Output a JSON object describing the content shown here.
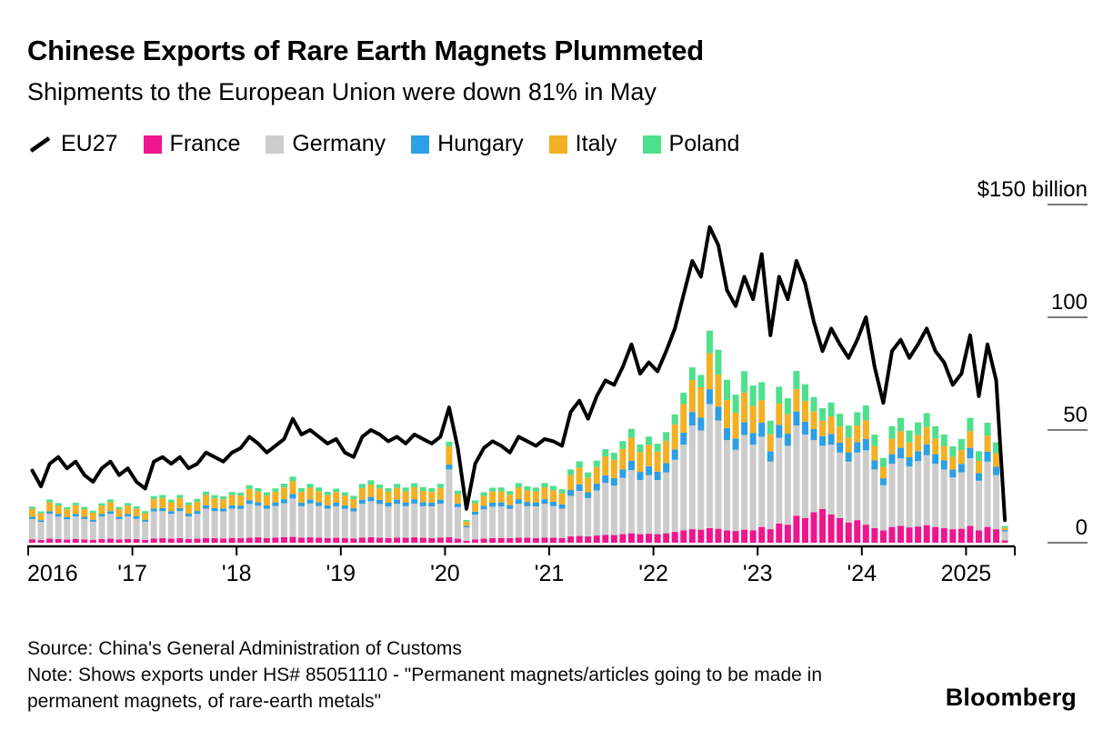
{
  "header": {
    "title": "Chinese Exports of Rare Earth Magnets Plummeted",
    "subtitle": "Shipments to the European Union were down 81% in May"
  },
  "legend": {
    "items": [
      {
        "label": "EU27",
        "type": "line",
        "color": "#000000"
      },
      {
        "label": "France",
        "type": "square",
        "color": "#ED168F"
      },
      {
        "label": "Germany",
        "type": "square",
        "color": "#CCCCCC"
      },
      {
        "label": "Hungary",
        "type": "square",
        "color": "#2D9FE4"
      },
      {
        "label": "Italy",
        "type": "square",
        "color": "#F2B024"
      },
      {
        "label": "Poland",
        "type": "square",
        "color": "#4EE08D"
      }
    ]
  },
  "chart_data": {
    "type": "bar",
    "stacked": true,
    "x_start": "2016-01",
    "x_end": "2025-05",
    "months": 113,
    "x_year_labels": [
      "2016",
      "'17",
      "'18",
      "'19",
      "'20",
      "'21",
      "'22",
      "'23",
      "'24",
      "2025"
    ],
    "x_year_start_indices": [
      0,
      12,
      24,
      36,
      48,
      60,
      72,
      84,
      96,
      108
    ],
    "ylim": [
      0,
      150
    ],
    "y_ticks": [
      {
        "value": 150,
        "label": "$150 billion"
      },
      {
        "value": 100,
        "label": "100"
      },
      {
        "value": 50,
        "label": "50"
      },
      {
        "value": 0,
        "label": "0"
      }
    ],
    "legend_position": "top",
    "grid": "right-ticks-only",
    "series": [
      {
        "name": "France",
        "color": "#ED168F",
        "values": [
          1.5,
          1.2,
          1.8,
          1.6,
          1.4,
          1.7,
          1.5,
          1.3,
          1.6,
          1.8,
          1.5,
          1.7,
          1.6,
          1.3,
          1.9,
          2.0,
          1.8,
          2.0,
          1.7,
          1.8,
          2.1,
          2.0,
          1.9,
          2.1,
          2.0,
          2.2,
          2.4,
          2.1,
          2.3,
          2.5,
          2.6,
          2.2,
          2.4,
          2.3,
          2.1,
          2.2,
          2.0,
          1.9,
          2.3,
          2.4,
          2.2,
          2.1,
          2.3,
          2.2,
          2.4,
          2.2,
          2.1,
          2.3,
          2.5,
          1.8,
          0.8,
          1.5,
          1.8,
          2.0,
          2.1,
          2.0,
          2.3,
          2.2,
          2.1,
          2.3,
          2.2,
          2.1,
          2.8,
          3.0,
          2.8,
          3.2,
          3.5,
          3.4,
          3.8,
          4.2,
          3.8,
          4.0,
          3.8,
          4.2,
          4.8,
          5.5,
          6.0,
          5.8,
          6.5,
          6.2,
          5.5,
          5.2,
          5.8,
          5.5,
          7.0,
          6.0,
          8.5,
          8.0,
          12.0,
          11.0,
          13.5,
          15.0,
          12.5,
          11.0,
          9.0,
          10.0,
          8.0,
          6.5,
          5.5,
          7.0,
          7.5,
          6.8,
          7.2,
          7.8,
          7.0,
          6.5,
          6.0,
          6.2,
          7.5,
          5.5,
          7.0,
          6.0,
          1.0
        ]
      },
      {
        "name": "Germany",
        "color": "#CCCCCC",
        "values": [
          9,
          8,
          11,
          10,
          9,
          10,
          9,
          8,
          10,
          11,
          9,
          10,
          9,
          8,
          12,
          12,
          11,
          12,
          10,
          11,
          13,
          12,
          12,
          13,
          13,
          15,
          14,
          13,
          14,
          15,
          17,
          14,
          15,
          14,
          13,
          14,
          13,
          12,
          15,
          16,
          15,
          14,
          15,
          14,
          15,
          14,
          14,
          15,
          30,
          14,
          6,
          11,
          13,
          14,
          14,
          13,
          15,
          14,
          14,
          15,
          14,
          13,
          18,
          20,
          17,
          20,
          23,
          22,
          25,
          28,
          24,
          26,
          24,
          27,
          32,
          38,
          46,
          44,
          55,
          48,
          40,
          36,
          42,
          38,
          40,
          30,
          38,
          35,
          40,
          37,
          32,
          28,
          31,
          29,
          27,
          30,
          33,
          26,
          20,
          28,
          30,
          27,
          29,
          31,
          28,
          26,
          23,
          25,
          30,
          22,
          29,
          24,
          4
        ]
      },
      {
        "name": "Hungary",
        "color": "#2D9FE4",
        "values": [
          1.0,
          0.8,
          1.2,
          1.1,
          1.0,
          1.1,
          1.0,
          0.9,
          1.1,
          1.2,
          1.0,
          1.1,
          1.1,
          0.9,
          1.3,
          1.4,
          1.2,
          1.4,
          1.2,
          1.3,
          1.5,
          1.4,
          1.3,
          1.5,
          1.5,
          1.7,
          1.6,
          1.5,
          1.6,
          1.8,
          2.0,
          1.6,
          1.8,
          1.7,
          1.5,
          1.6,
          1.5,
          1.4,
          1.8,
          1.9,
          1.8,
          1.7,
          1.8,
          1.7,
          1.9,
          1.8,
          1.7,
          1.8,
          2.2,
          1.5,
          0.7,
          1.3,
          1.6,
          1.8,
          1.8,
          1.7,
          2.0,
          1.9,
          1.8,
          2.0,
          2.0,
          1.9,
          2.6,
          2.9,
          2.6,
          3.0,
          3.4,
          3.3,
          3.7,
          4.2,
          3.6,
          3.9,
          3.7,
          4.1,
          4.6,
          5.3,
          6.0,
          5.7,
          6.6,
          6.2,
          5.4,
          5.0,
          5.7,
          5.2,
          6.2,
          4.6,
          5.8,
          5.4,
          6.2,
          5.7,
          4.9,
          4.3,
          4.8,
          4.4,
          4.1,
          4.6,
          5.1,
          4.0,
          3.1,
          4.3,
          4.6,
          4.1,
          4.4,
          4.8,
          4.3,
          4.0,
          3.5,
          3.8,
          4.6,
          3.4,
          4.4,
          3.7,
          0.6
        ]
      },
      {
        "name": "Italy",
        "color": "#F2B024",
        "values": [
          3.5,
          3.0,
          4.0,
          3.8,
          3.4,
          3.8,
          3.4,
          3.1,
          3.7,
          4.0,
          3.4,
          3.7,
          3.4,
          2.9,
          4.2,
          4.4,
          3.9,
          4.4,
          3.8,
          4.0,
          4.6,
          4.3,
          4.1,
          4.5,
          4.4,
          5.0,
          4.7,
          4.4,
          4.7,
          5.2,
          5.8,
          4.8,
          5.2,
          4.9,
          4.5,
          4.7,
          4.4,
          4.1,
          5.2,
          5.5,
          5.1,
          4.8,
          5.2,
          4.9,
          5.3,
          5.0,
          4.8,
          5.2,
          8.0,
          4.3,
          1.9,
          3.7,
          4.4,
          4.9,
          4.9,
          4.6,
          5.3,
          5.1,
          4.9,
          5.3,
          5.1,
          4.9,
          6.6,
          7.4,
          6.4,
          7.4,
          8.4,
          8.1,
          9.1,
          10.2,
          8.8,
          9.5,
          8.9,
          9.9,
          11.1,
          12.7,
          14.2,
          13.5,
          16.0,
          14.2,
          12.4,
          11.5,
          13.1,
          12.0,
          10.0,
          7.5,
          9.4,
          8.7,
          10.0,
          9.2,
          7.9,
          6.9,
          7.7,
          7.1,
          6.6,
          7.4,
          8.2,
          6.4,
          5.0,
          6.9,
          7.4,
          6.6,
          7.1,
          7.7,
          6.9,
          6.4,
          5.7,
          6.1,
          7.4,
          5.4,
          7.1,
          6.0,
          1.0
        ]
      },
      {
        "name": "Poland",
        "color": "#4EE08D",
        "values": [
          1.0,
          0.9,
          1.2,
          1.1,
          1.0,
          1.1,
          1.0,
          0.9,
          1.1,
          1.2,
          1.0,
          1.1,
          1.1,
          0.9,
          1.3,
          1.4,
          1.2,
          1.4,
          1.2,
          1.3,
          1.5,
          1.4,
          1.3,
          1.4,
          1.4,
          1.6,
          1.5,
          1.4,
          1.5,
          1.7,
          1.9,
          1.6,
          1.7,
          1.6,
          1.5,
          1.5,
          1.5,
          1.4,
          1.8,
          1.9,
          1.7,
          1.6,
          1.8,
          1.7,
          1.8,
          1.7,
          1.6,
          1.8,
          2.1,
          1.5,
          0.7,
          1.3,
          1.6,
          1.7,
          1.7,
          1.6,
          1.9,
          1.8,
          1.7,
          1.9,
          1.9,
          1.8,
          2.5,
          2.8,
          2.4,
          2.8,
          3.2,
          3.1,
          3.5,
          3.9,
          3.4,
          3.7,
          3.5,
          3.9,
          4.4,
          5.0,
          5.6,
          5.4,
          10.0,
          11.0,
          9.0,
          8.0,
          9.5,
          9.0,
          8.0,
          6.0,
          7.5,
          7.0,
          8.0,
          7.4,
          6.3,
          5.5,
          6.2,
          5.7,
          5.3,
          5.9,
          6.6,
          5.1,
          4.0,
          5.5,
          5.9,
          5.3,
          5.7,
          6.2,
          5.5,
          5.1,
          4.6,
          4.9,
          5.9,
          4.3,
          5.7,
          4.8,
          0.8
        ]
      }
    ],
    "line_series": {
      "name": "EU27",
      "color": "#000000",
      "values": [
        32,
        25,
        35,
        38,
        33,
        36,
        30,
        27,
        33,
        36,
        30,
        33,
        27,
        24,
        36,
        38,
        35,
        38,
        33,
        35,
        40,
        38,
        36,
        40,
        42,
        47,
        44,
        40,
        43,
        46,
        55,
        48,
        50,
        47,
        44,
        46,
        40,
        38,
        47,
        50,
        48,
        45,
        47,
        44,
        48,
        46,
        44,
        47,
        60,
        42,
        15,
        35,
        42,
        45,
        43,
        40,
        47,
        45,
        43,
        46,
        45,
        43,
        58,
        63,
        55,
        65,
        72,
        70,
        78,
        88,
        75,
        80,
        76,
        85,
        95,
        110,
        125,
        118,
        140,
        132,
        112,
        105,
        118,
        108,
        128,
        92,
        118,
        108,
        125,
        115,
        98,
        85,
        95,
        88,
        82,
        90,
        100,
        78,
        62,
        85,
        90,
        82,
        88,
        95,
        85,
        80,
        70,
        75,
        92,
        65,
        88,
        72,
        10
      ]
    }
  },
  "footer": {
    "source": "Source: China's General Administration of Customs",
    "note": "Note: Shows exports under HS# 85051110 - \"Permanent magnets/articles going to be made in permanent magnets, of rare-earth metals\"",
    "brand": "Bloomberg"
  }
}
